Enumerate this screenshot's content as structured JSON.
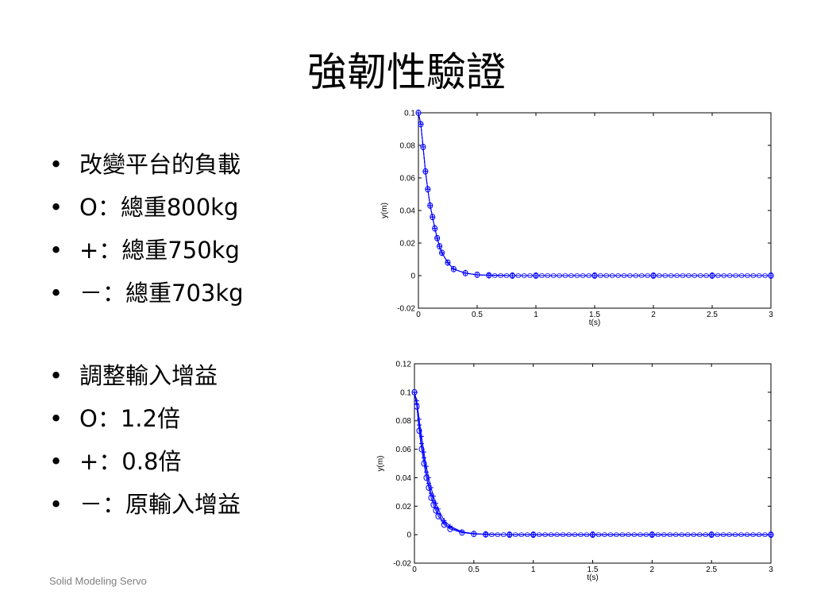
{
  "title": "強韌性驗證",
  "list1": [
    "改變平台的負載",
    "O：總重800kg",
    "+：總重750kg",
    "－：總重703kg"
  ],
  "list2": [
    "調整輸入增益",
    "O：1.2倍",
    "+：0.8倍",
    "－：原輸入增益"
  ],
  "footer": "Solid Modeling Servo",
  "chart_data": [
    {
      "type": "line",
      "xlabel": "t(s)",
      "ylabel": "y(m)",
      "xlim": [
        0,
        3
      ],
      "ylim": [
        -0.02,
        0.1
      ],
      "xticks": [
        "0",
        "0.5",
        "1",
        "1.5",
        "2",
        "2.5",
        "3"
      ],
      "yticks": [
        "-0.02",
        "0",
        "0.02",
        "0.04",
        "0.06",
        "0.08",
        "0.1"
      ],
      "grid": false,
      "color": "#0000ff",
      "series": [
        {
          "marker": "o",
          "x": [
            0,
            0.02,
            0.04,
            0.06,
            0.08,
            0.1,
            0.12,
            0.14,
            0.16,
            0.18,
            0.2,
            0.25,
            0.3,
            0.4,
            0.5,
            0.6,
            0.8,
            1.0,
            1.5,
            2.0,
            2.5,
            3.0
          ],
          "y": [
            0.1,
            0.093,
            0.079,
            0.064,
            0.053,
            0.043,
            0.036,
            0.029,
            0.023,
            0.018,
            0.014,
            0.008,
            0.004,
            0.0015,
            0.0005,
            0.0002,
            0,
            0,
            0,
            0,
            0,
            0
          ]
        },
        {
          "marker": "+",
          "x": [
            0,
            0.02,
            0.04,
            0.06,
            0.08,
            0.1,
            0.12,
            0.14,
            0.16,
            0.18,
            0.2,
            0.25,
            0.3,
            0.4,
            0.5,
            0.6,
            0.8,
            1.0,
            1.5,
            2.0,
            2.5,
            3.0
          ],
          "y": [
            0.1,
            0.093,
            0.079,
            0.064,
            0.053,
            0.043,
            0.036,
            0.029,
            0.023,
            0.018,
            0.014,
            0.008,
            0.004,
            0.0015,
            0.0005,
            0.0002,
            0,
            0,
            0,
            0,
            0,
            0
          ]
        },
        {
          "marker": "-",
          "x": [
            0,
            0.02,
            0.04,
            0.06,
            0.08,
            0.1,
            0.12,
            0.14,
            0.16,
            0.18,
            0.2,
            0.25,
            0.3,
            0.4,
            0.5,
            0.6,
            0.8,
            1.0,
            1.5,
            2.0,
            2.5,
            3.0
          ],
          "y": [
            0.1,
            0.093,
            0.079,
            0.064,
            0.053,
            0.043,
            0.036,
            0.029,
            0.023,
            0.018,
            0.014,
            0.008,
            0.004,
            0.0015,
            0.0005,
            0.0002,
            0,
            0,
            0,
            0,
            0,
            0
          ]
        }
      ]
    },
    {
      "type": "line",
      "xlabel": "t(s)",
      "ylabel": "y(m)",
      "xlim": [
        0,
        3
      ],
      "ylim": [
        -0.02,
        0.12
      ],
      "xticks": [
        "0",
        "0.5",
        "1",
        "1.5",
        "2",
        "2.5",
        "3"
      ],
      "yticks": [
        "-0.02",
        "0",
        "0.02",
        "0.04",
        "0.06",
        "0.08",
        "0.1",
        "0.12"
      ],
      "grid": false,
      "color": "#0000ff",
      "series": [
        {
          "marker": "o",
          "x": [
            0,
            0.02,
            0.04,
            0.06,
            0.08,
            0.1,
            0.12,
            0.14,
            0.16,
            0.18,
            0.2,
            0.25,
            0.3,
            0.4,
            0.5,
            0.6,
            0.8,
            1.0,
            1.5,
            2.0,
            2.5,
            3.0
          ],
          "y": [
            0.1,
            0.09,
            0.073,
            0.06,
            0.05,
            0.04,
            0.033,
            0.026,
            0.021,
            0.017,
            0.013,
            0.007,
            0.004,
            0.0015,
            0.0005,
            0.0002,
            0,
            0,
            0,
            0,
            0,
            0
          ]
        },
        {
          "marker": "+",
          "x": [
            0,
            0.02,
            0.04,
            0.06,
            0.08,
            0.1,
            0.12,
            0.14,
            0.16,
            0.18,
            0.2,
            0.25,
            0.3,
            0.4,
            0.5,
            0.6,
            0.8,
            1.0,
            1.5,
            2.0,
            2.5,
            3.0
          ],
          "y": [
            0.1,
            0.094,
            0.081,
            0.069,
            0.058,
            0.048,
            0.04,
            0.033,
            0.027,
            0.022,
            0.018,
            0.01,
            0.006,
            0.002,
            0.0008,
            0.0003,
            0,
            0,
            0,
            0,
            0,
            0
          ]
        },
        {
          "marker": "-",
          "x": [
            0,
            0.02,
            0.04,
            0.06,
            0.08,
            0.1,
            0.12,
            0.14,
            0.16,
            0.18,
            0.2,
            0.25,
            0.3,
            0.4,
            0.5,
            0.6,
            0.8,
            1.0,
            1.5,
            2.0,
            2.5,
            3.0
          ],
          "y": [
            0.1,
            0.092,
            0.077,
            0.064,
            0.054,
            0.044,
            0.036,
            0.029,
            0.024,
            0.019,
            0.015,
            0.008,
            0.005,
            0.0018,
            0.0006,
            0.0002,
            0,
            0,
            0,
            0,
            0,
            0
          ]
        }
      ]
    }
  ]
}
